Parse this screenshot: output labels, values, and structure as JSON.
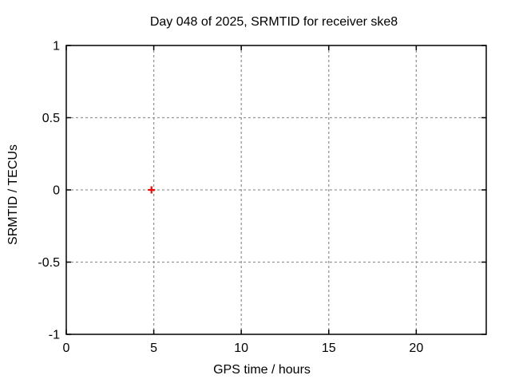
{
  "chart_data": {
    "type": "scatter",
    "title": "Day 048 of 2025, SRMTID for receiver ske8",
    "xlabel": "GPS time / hours",
    "ylabel": "SRMTID / TECUs",
    "xlim": [
      0,
      24
    ],
    "ylim": [
      -1,
      1
    ],
    "x_ticks": [
      0,
      5,
      10,
      15,
      20
    ],
    "x_tick_labels": [
      "0",
      "5",
      "10",
      "15",
      "20"
    ],
    "y_ticks": [
      -1,
      -0.5,
      0,
      0.5,
      1
    ],
    "y_tick_labels": [
      "-1",
      "-0.5",
      "0",
      "0.5",
      "1"
    ],
    "grid": true,
    "grid_style": "dashed",
    "legend": "none",
    "series": [
      {
        "name": "SRMTID",
        "marker": "plus",
        "color": "#ff0000",
        "points": [
          {
            "x": 4.87,
            "y": 0.0
          }
        ]
      }
    ]
  },
  "colors": {
    "background": "#ffffff",
    "axis": "#000000",
    "grid": "#969696",
    "text": "#000000",
    "marker": "#ff0000"
  }
}
